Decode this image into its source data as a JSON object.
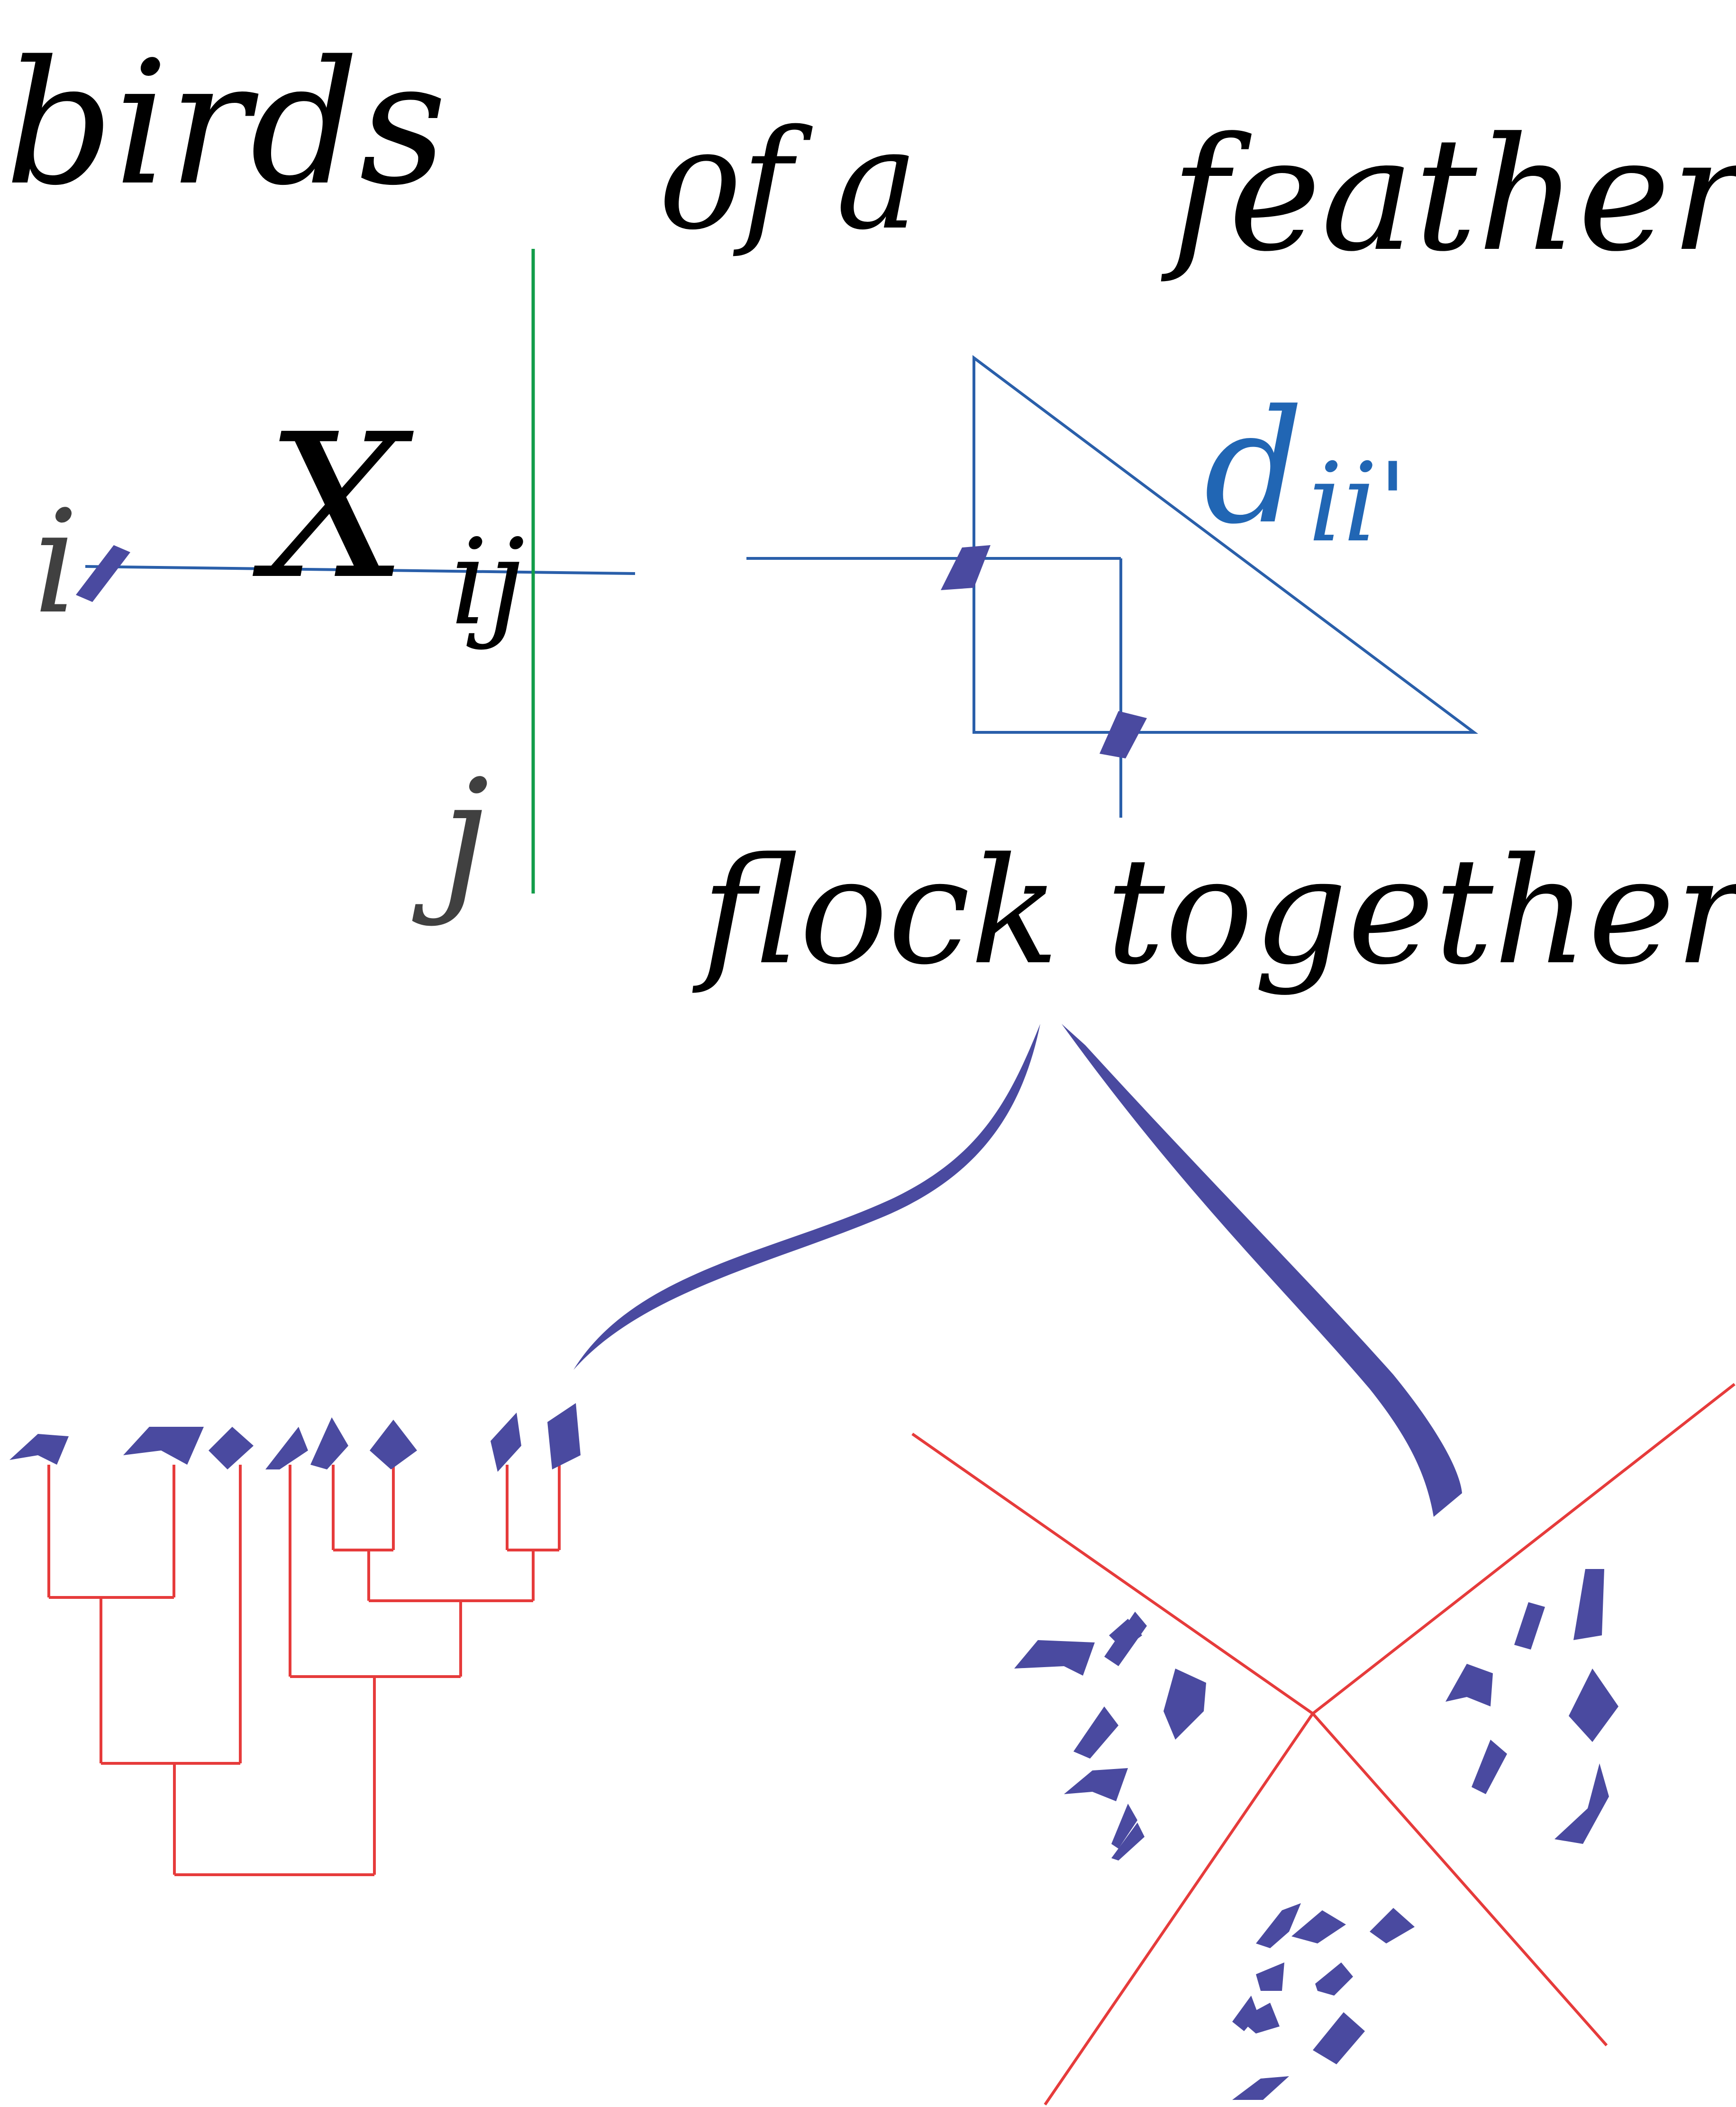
{
  "words": {
    "w1": "birds",
    "w2": "of a",
    "w3": "feather",
    "w4": "flock together"
  },
  "labels": {
    "x": "X",
    "x_sub": "ij",
    "i": "i",
    "j": "j",
    "d": "d",
    "d_sub": "ii'"
  },
  "colors": {
    "ink": "#000000",
    "grey_ink": "#404040",
    "blue_line": "#2a5faa",
    "blue_text": "#2166b4",
    "green_line": "#129c49",
    "stroke_purple": "#4a4aa0",
    "tree_red": "#e63b3b"
  },
  "icons": {
    "dendrogram": "dendrogram-icon",
    "clusters": "cluster-regions-icon"
  }
}
